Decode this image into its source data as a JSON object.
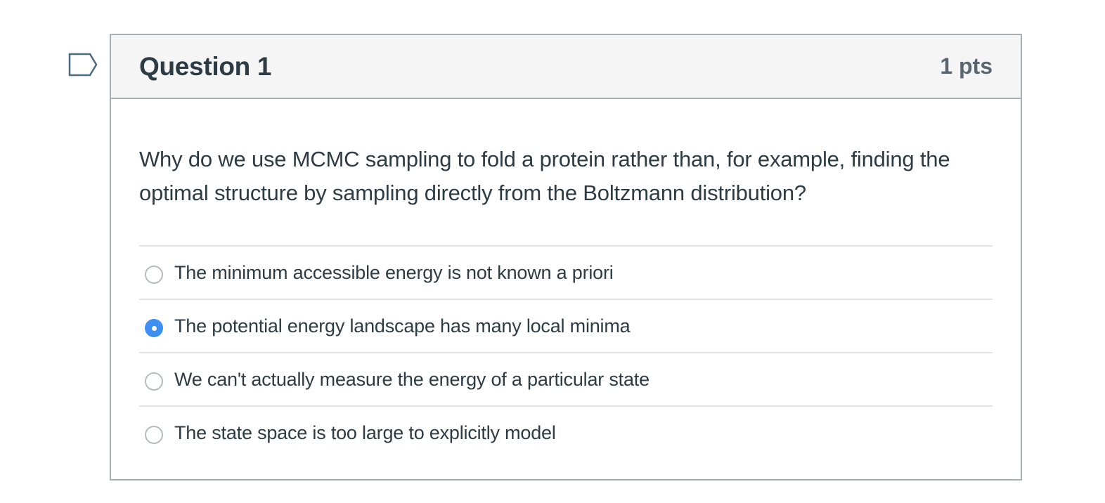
{
  "question": {
    "title": "Question 1",
    "points": "1 pts",
    "text": "Why do we use MCMC sampling to fold a protein rather than, for example, finding the optimal structure by sampling directly from the Boltzmann distribution?",
    "flag_icon": "flag-icon"
  },
  "answers": [
    {
      "label": "The minimum accessible energy is not known a priori",
      "selected": false
    },
    {
      "label": "The potential energy landscape has many local minima",
      "selected": true
    },
    {
      "label": "We can't actually measure the energy of a particular state",
      "selected": false
    },
    {
      "label": "The state space is too large to explicitly model",
      "selected": false
    }
  ],
  "colors": {
    "accent": "#3d8ff2",
    "text": "#2d3b45",
    "header_bg": "#f5f5f5",
    "border": "#a5afb5",
    "points_text": "#5a6770"
  }
}
